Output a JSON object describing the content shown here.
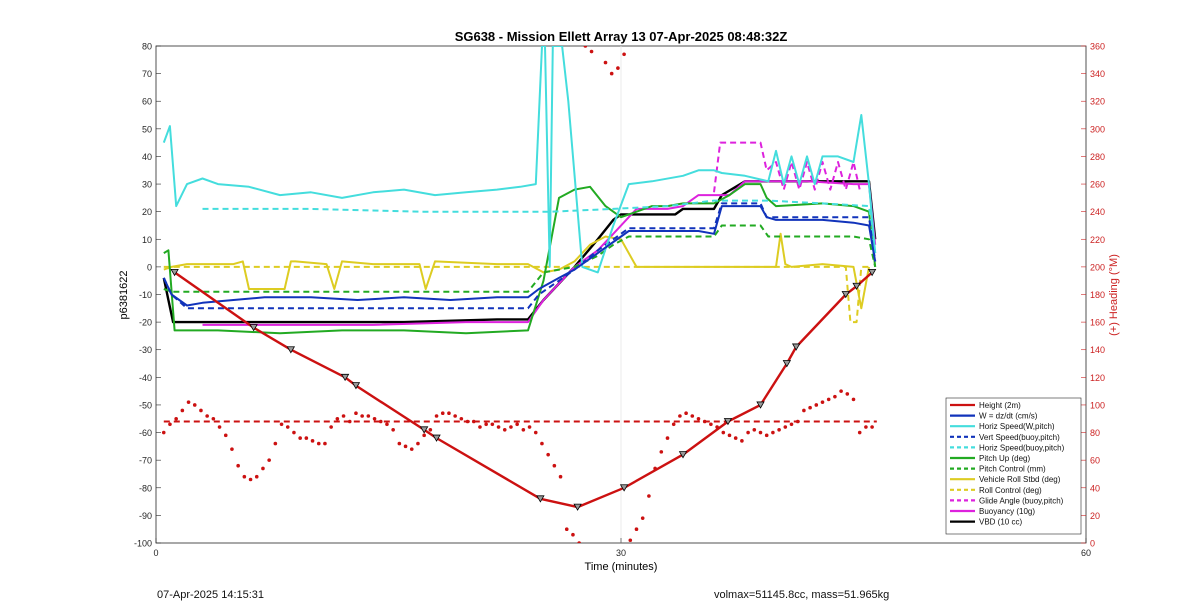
{
  "colors": {
    "height": "#cc1111",
    "w": "#1133bb",
    "horiz": "#44dddd",
    "pitch": "#22aa22",
    "roll": "#ddcc22",
    "glide": "#dd22dd",
    "buoyancy": "#dd22dd",
    "vbd": "#000000",
    "heading_axis": "#cc2222"
  },
  "footer": {
    "timestamp": "07-Apr-2025 14:15:31",
    "stats": "volmax=51145.8cc, mass=51.965kg"
  },
  "chart_data": {
    "type": "line",
    "title": "SG638 - Mission Ellett Array 13 07-Apr-2025 08:48:32Z",
    "xlabel": "Time (minutes)",
    "ylabel": "p6381622",
    "y2label": "(+) Heading (°M)",
    "xlim": [
      0,
      60
    ],
    "ylim": [
      -100,
      80
    ],
    "y2lim": [
      0,
      360
    ],
    "xticks": [
      0,
      30,
      60
    ],
    "yticks": [
      80,
      70,
      60,
      50,
      40,
      30,
      20,
      10,
      0,
      -10,
      -20,
      -30,
      -40,
      -50,
      -60,
      -70,
      -80,
      -90,
      -100
    ],
    "y2ticks": [
      360,
      340,
      320,
      300,
      280,
      260,
      240,
      220,
      200,
      180,
      160,
      140,
      120,
      100,
      80,
      60,
      40,
      20,
      0
    ],
    "grid": "x-only at 30",
    "legend_position": "bottom-right",
    "series": [
      {
        "name": "Height (2m)",
        "style": "solid",
        "color": "#cc1111",
        "markers": true,
        "x": [
          1.2,
          6.3,
          8.7,
          12.2,
          12.9,
          17.3,
          18.1,
          24.8,
          27.2,
          30.2,
          34.0,
          36.9,
          39.0,
          40.7,
          41.3,
          44.5,
          45.2,
          46.2
        ],
        "y": [
          -2,
          -22,
          -30,
          -40,
          -43,
          -59,
          -62,
          -84,
          -87,
          -80,
          -68,
          -56,
          -50,
          -35,
          -29,
          -10,
          -7,
          -2
        ]
      },
      {
        "name": "W = dz/dt (cm/s)",
        "style": "solid",
        "color": "#1133bb",
        "x": [
          0.5,
          1.0,
          2.0,
          3.0,
          5.0,
          7.0,
          10.0,
          13.0,
          16.0,
          19.0,
          22.0,
          24.0,
          24.7,
          26.0,
          27.0,
          28.5,
          29.5,
          30.5,
          32.0,
          34.0,
          35.0,
          36.0,
          36.5,
          39.0,
          39.4,
          40.0,
          43.0,
          45.0,
          46.0,
          46.4
        ],
        "y": [
          -4,
          -10,
          -14,
          -13,
          -12,
          -11,
          -11,
          -12,
          -11,
          -12,
          -11,
          -11,
          -8,
          -4,
          -1,
          5,
          9,
          13,
          13,
          13,
          13,
          12,
          22,
          22,
          18,
          17,
          17,
          16,
          15,
          2
        ]
      },
      {
        "name": "Horiz Speed(W,pitch)",
        "style": "solid",
        "color": "#44dddd",
        "x": [
          0.5,
          0.9,
          1.3,
          2.0,
          3.0,
          4.0,
          6.0,
          8.0,
          10.0,
          12.0,
          14.0,
          16.0,
          18.0,
          20.0,
          22.0,
          23.5,
          24.5,
          24.9,
          25.1,
          25.4,
          25.6,
          25.9,
          26.2,
          26.6,
          27.5,
          28.5,
          29.5,
          30.5,
          32.0,
          34.0,
          35.0,
          36.0,
          36.5,
          38.0,
          39.5,
          40.0,
          40.5,
          41.0,
          41.5,
          42.0,
          42.5,
          43.0,
          44.0,
          45.0,
          45.5,
          46.0,
          46.4
        ],
        "y": [
          45,
          51,
          22,
          30,
          32,
          30,
          29,
          26,
          27,
          25,
          27,
          28,
          26,
          27,
          28,
          29,
          30,
          80,
          80,
          0,
          80,
          80,
          80,
          60,
          0,
          -2,
          15,
          30,
          31,
          33,
          35,
          35,
          34,
          33,
          31,
          42,
          30,
          40,
          30,
          40,
          30,
          40,
          40,
          38,
          55,
          30,
          5
        ]
      },
      {
        "name": "Vert Speed(buoy,pitch)",
        "style": "dashed",
        "color": "#1133bb",
        "x": [
          0.5,
          1.0,
          2.0,
          4.0,
          8.0,
          12.0,
          16.0,
          20.0,
          24.0,
          24.7,
          26.0,
          27.0,
          28.5,
          29.5,
          30.5,
          32.0,
          34.0,
          36.0,
          36.5,
          39.0,
          39.4,
          40.0,
          43.0,
          46.0,
          46.4
        ],
        "y": [
          -4,
          -10,
          -15,
          -15,
          -15,
          -15,
          -15,
          -15,
          -15,
          -10,
          -5,
          -1,
          6,
          10,
          14,
          14,
          14,
          14,
          23,
          23,
          18,
          18,
          18,
          18,
          2
        ]
      },
      {
        "name": "Horiz Speed(buoy,pitch)",
        "style": "dashed",
        "color": "#44dddd",
        "x": [
          3.0,
          10.0,
          17.0,
          24.0,
          25.5,
          29.5,
          33.0,
          36.0,
          39.5,
          43.0,
          46.0,
          46.4
        ],
        "y": [
          21,
          21,
          20,
          20,
          20,
          21,
          22,
          24,
          24,
          23,
          22,
          5
        ]
      },
      {
        "name": "Pitch Up (deg)",
        "style": "solid",
        "color": "#22aa22",
        "x": [
          0.5,
          0.8,
          1.2,
          1.7,
          4.0,
          8.0,
          12.0,
          16.0,
          20.0,
          24.0,
          25.0,
          26.0,
          27.0,
          28.0,
          29.0,
          30.0,
          31.0,
          32.0,
          33.0,
          34.0,
          35.0,
          36.0,
          37.0,
          38.0,
          39.0,
          39.4,
          40.0,
          43.0,
          45.0,
          46.0,
          46.4
        ],
        "y": [
          5,
          6,
          -23,
          -23,
          -23,
          -24,
          -23,
          -23,
          -24,
          -23,
          -5,
          25,
          28,
          29,
          22,
          18,
          20,
          22,
          22,
          23,
          23,
          23,
          26,
          30,
          30,
          25,
          22,
          23,
          22,
          20,
          0
        ]
      },
      {
        "name": "Pitch Control (mm)",
        "style": "dashed",
        "color": "#22aa22",
        "x": [
          0.5,
          1.0,
          4.0,
          10.0,
          16.0,
          22.0,
          24.0,
          25.0,
          26.0,
          27.0,
          28.5,
          29.5,
          30.5,
          32.0,
          34.0,
          36.0,
          36.5,
          39.0,
          39.5,
          40.0,
          43.0,
          45.0,
          46.0,
          46.4
        ],
        "y": [
          -8,
          -9,
          -9,
          -9,
          -9,
          -9,
          -9,
          -2,
          -1,
          0,
          4,
          8,
          11,
          11,
          11,
          11,
          15,
          15,
          11,
          11,
          11,
          11,
          10,
          0
        ]
      },
      {
        "name": "Vehicle Roll Stbd (deg)",
        "style": "solid",
        "color": "#ddcc22",
        "x": [
          0.5,
          1.0,
          2.0,
          5.0,
          5.6,
          6.0,
          8.3,
          8.7,
          9.0,
          11.0,
          11.5,
          12.0,
          14.0,
          15.0,
          17.0,
          17.4,
          18.0,
          22.0,
          24.0,
          25.0,
          26.0,
          27.0,
          28.0,
          29.0,
          30.0,
          31.0,
          33.0,
          36.0,
          38.0,
          40.0,
          40.3,
          40.6,
          41.0,
          43.0,
          45.0,
          45.5,
          46.0
        ],
        "y": [
          -1,
          0,
          1,
          1,
          2,
          -8,
          -8,
          2,
          2,
          1,
          -8,
          2,
          1,
          1,
          1,
          -8,
          2,
          1,
          1,
          -2,
          -1,
          2,
          8,
          11,
          10,
          0,
          0,
          0,
          0,
          0,
          12,
          1,
          0,
          1,
          0,
          -15,
          0
        ]
      },
      {
        "name": "Roll Control (deg)",
        "style": "dashed",
        "color": "#ddcc22",
        "x": [
          0.5,
          6.0,
          12.0,
          18.0,
          24.0,
          30.0,
          36.0,
          42.0,
          44.5,
          44.8,
          45.2,
          45.5,
          46.0
        ],
        "y": [
          0,
          0,
          0,
          0,
          0,
          0,
          0,
          0,
          0,
          -20,
          -20,
          0,
          0
        ]
      },
      {
        "name": "Glide Angle (buoy,pitch)",
        "style": "dashed",
        "color": "#dd22dd",
        "x": [
          36.0,
          36.4,
          39.0,
          39.4,
          40.0,
          40.5,
          41.0,
          41.5,
          42.0,
          42.5,
          43.0,
          43.5,
          44.0,
          44.5,
          45.0,
          45.4
        ],
        "y": [
          27,
          45,
          45,
          35,
          38,
          28,
          38,
          28,
          38,
          28,
          38,
          28,
          38,
          28,
          38,
          28
        ]
      },
      {
        "name": "Buoyancy (10g)",
        "style": "solid",
        "color": "#dd22dd",
        "x": [
          3.0,
          8.0,
          14.0,
          20.0,
          24.0,
          25.0,
          26.0,
          27.0,
          28.5,
          29.5,
          31.0,
          33.0,
          34.0,
          35.0,
          36.0,
          37.0,
          38.0,
          42.0,
          45.0,
          46.0,
          46.4
        ],
        "y": [
          -21,
          -21,
          -21,
          -20,
          -20,
          -12,
          -6,
          0,
          6,
          12,
          21,
          21,
          22,
          26,
          26,
          26,
          31,
          31,
          30,
          30,
          8
        ]
      },
      {
        "name": "VBD (10 cc)",
        "style": "solid",
        "color": "#000000",
        "x": [
          0.5,
          0.8,
          1.1,
          4.0,
          10.0,
          16.0,
          22.0,
          24.0,
          25.0,
          26.0,
          27.0,
          28.5,
          29.5,
          30.0,
          32.0,
          33.5,
          34.0,
          35.0,
          36.0,
          36.5,
          38.0,
          40.0,
          43.0,
          45.0,
          46.0,
          46.4
        ],
        "y": [
          -4,
          -12,
          -20,
          -20,
          -20,
          -20,
          -19,
          -19,
          -12,
          -6,
          0,
          10,
          17,
          19,
          19,
          19,
          21,
          21,
          21,
          26,
          31,
          31,
          31,
          31,
          31,
          10
        ]
      }
    ],
    "heading_series": [
      {
        "name": "Heading",
        "axis": "right",
        "style": "dotted-markers",
        "color": "#cc1111",
        "x": [
          0.5,
          0.9,
          1.3,
          1.7,
          2.1,
          2.5,
          2.9,
          3.3,
          3.7,
          4.1,
          4.5,
          4.9,
          5.3,
          5.7,
          6.1,
          6.5,
          6.9,
          7.3,
          7.7,
          8.1,
          8.5,
          8.9,
          9.3,
          9.7,
          10.1,
          10.5,
          10.9,
          11.3,
          11.7,
          12.1,
          12.5,
          12.9,
          13.3,
          13.7,
          14.1,
          14.5,
          14.9,
          15.3,
          15.7,
          16.1,
          16.5,
          16.9,
          17.3,
          17.7,
          18.1,
          18.5,
          18.9,
          19.3,
          19.7,
          20.1,
          20.5,
          20.9,
          21.3,
          21.7,
          22.1,
          22.5,
          22.9,
          23.3,
          23.7,
          24.1,
          24.5,
          24.9,
          25.3,
          25.7,
          26.1,
          26.5,
          26.9,
          27.3,
          27.7,
          28.1,
          29.0,
          29.4,
          29.8,
          30.2,
          30.6,
          31.0,
          31.4,
          31.8,
          32.2,
          32.6,
          33.0,
          33.4,
          33.8,
          34.2,
          34.6,
          35.0,
          35.4,
          35.8,
          36.2,
          36.6,
          37.0,
          37.4,
          37.8,
          38.2,
          38.6,
          39.0,
          39.4,
          39.8,
          40.2,
          40.6,
          41.0,
          41.4,
          41.8,
          42.2,
          42.6,
          43.0,
          43.4,
          43.8,
          44.2,
          44.6,
          45.0,
          45.4,
          45.8,
          46.2
        ],
        "y": [
          80,
          86,
          90,
          96,
          102,
          100,
          96,
          92,
          90,
          84,
          78,
          68,
          56,
          48,
          46,
          48,
          54,
          60,
          72,
          86,
          84,
          80,
          76,
          76,
          74,
          72,
          72,
          84,
          90,
          92,
          88,
          94,
          92,
          92,
          90,
          88,
          86,
          82,
          72,
          70,
          68,
          72,
          78,
          82,
          92,
          94,
          94,
          92,
          90,
          88,
          88,
          84,
          86,
          86,
          84,
          82,
          84,
          86,
          82,
          84,
          80,
          72,
          64,
          56,
          48,
          10,
          6,
          0,
          360,
          356,
          348,
          340,
          344,
          354,
          2,
          10,
          18,
          34,
          54,
          66,
          76,
          86,
          92,
          94,
          92,
          90,
          88,
          86,
          84,
          80,
          78,
          76,
          74,
          80,
          82,
          80,
          78,
          80,
          82,
          84,
          86,
          88,
          96,
          98,
          100,
          102,
          104,
          106,
          110,
          108,
          104,
          80,
          84,
          84
        ]
      },
      {
        "name": "Heading Ref",
        "axis": "right",
        "style": "dashed",
        "color": "#cc1111",
        "x": [
          0.5,
          46.5
        ],
        "y": [
          88,
          88
        ]
      }
    ]
  }
}
